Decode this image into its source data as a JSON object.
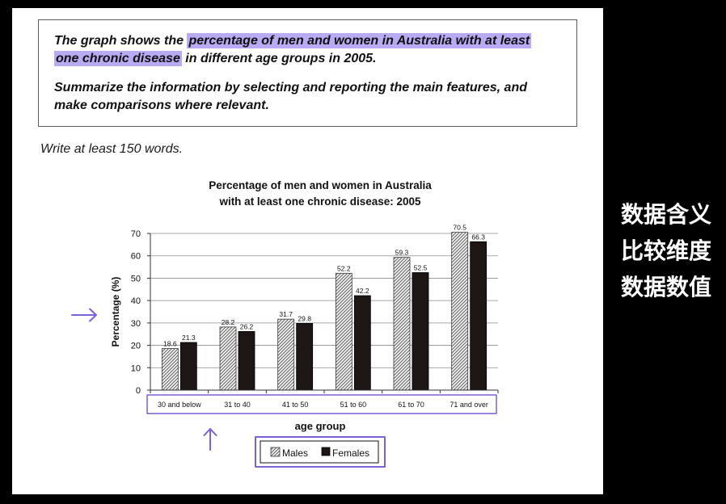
{
  "colors": {
    "page_background": "#000000",
    "panel_background": "#ffffff",
    "highlight": "#b9aaf3",
    "annotation": "#7d5fd9",
    "side_text": "#ffffff"
  },
  "prompt": {
    "before_highlight": "The graph shows the ",
    "highlight": "percentage of men and women in Australia with at least one chronic disease",
    "after_highlight": " in different age groups in 2005.",
    "instruction": "Summarize the information by selecting and reporting the main features, and make comparisons where relevant."
  },
  "word_requirement": "Write at least 150 words.",
  "annotations": {
    "y_axis_pointer_icon": "right-arrow-icon",
    "x_axis_pointer_icon": "up-arrow-icon"
  },
  "side_labels": [
    "数据含义",
    "比较维度",
    "数据数值"
  ],
  "chart_data": {
    "type": "bar",
    "title": "Percentage of men and women in Australia\nwith at least one chronic disease: 2005",
    "xlabel": "age group",
    "ylabel": "Percentage (%)",
    "categories": [
      "30 and below",
      "31 to 40",
      "41 to 50",
      "51 to 60",
      "61 to 70",
      "71 and over"
    ],
    "series": [
      {
        "name": "Males",
        "values": [
          18.6,
          28.2,
          31.7,
          52.2,
          59.3,
          70.5
        ],
        "color": "#4f4f4f"
      },
      {
        "name": "Females",
        "values": [
          21.3,
          26.2,
          29.8,
          42.2,
          52.5,
          66.3
        ],
        "color": "#1e1515"
      }
    ],
    "ylim": [
      0,
      70
    ],
    "yticks": [
      0,
      10,
      20,
      30,
      40,
      50,
      60,
      70
    ],
    "grid": true,
    "data_labels": true,
    "legend_placement": "bottom"
  }
}
